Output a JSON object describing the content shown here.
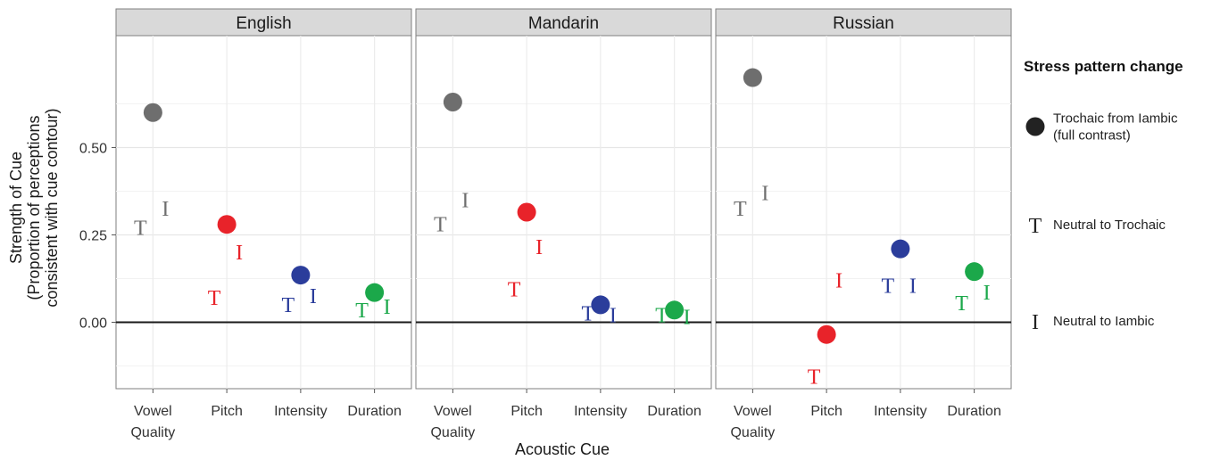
{
  "chart_data": {
    "type": "scatter",
    "facets": [
      "English",
      "Mandarin",
      "Russian"
    ],
    "categories": [
      [
        "Vowel",
        "Quality"
      ],
      [
        "Pitch"
      ],
      [
        "Intensity"
      ],
      [
        "Duration"
      ]
    ],
    "xlabel": "Acoustic Cue",
    "ylabel": [
      "Strength of Cue",
      "(Proportion of perceptions",
      "consistent with cue contour)"
    ],
    "ylim": [
      -0.19,
      0.82
    ],
    "yticks": [
      0.0,
      0.25,
      0.5
    ],
    "ytick_labels": [
      "0.00",
      "0.25",
      "0.50"
    ],
    "reference_line": 0,
    "grid": true,
    "colors": {
      "Vowel Quality": "#6e6e6e",
      "Pitch": "#e8232a",
      "Intensity": "#2b3d9b",
      "Duration": "#1ba84a"
    },
    "legend": {
      "title": "Stress pattern change",
      "position": "right",
      "entries": [
        {
          "key": "full",
          "symbol": "●",
          "label": [
            "Trochaic from Iambic",
            "(full contrast)"
          ]
        },
        {
          "key": "T",
          "symbol": "T",
          "label": [
            "Neutral to Trochaic"
          ]
        },
        {
          "key": "I",
          "symbol": "I",
          "label": [
            "Neutral to Iambic"
          ]
        }
      ]
    },
    "series": [
      {
        "key": "full",
        "values": {
          "English": [
            0.6,
            0.28,
            0.135,
            0.085
          ],
          "Mandarin": [
            0.63,
            0.315,
            0.05,
            0.035
          ],
          "Russian": [
            0.7,
            -0.035,
            0.21,
            0.145
          ]
        }
      },
      {
        "key": "T",
        "values": {
          "English": [
            0.27,
            0.07,
            0.05,
            0.035
          ],
          "Mandarin": [
            0.28,
            0.095,
            0.025,
            0.02
          ],
          "Russian": [
            0.325,
            -0.155,
            0.105,
            0.055
          ]
        }
      },
      {
        "key": "I",
        "values": {
          "English": [
            0.325,
            0.2,
            0.075,
            0.045
          ],
          "Mandarin": [
            0.35,
            0.215,
            0.02,
            0.015
          ],
          "Russian": [
            0.37,
            0.12,
            0.105,
            0.085
          ]
        }
      }
    ]
  }
}
